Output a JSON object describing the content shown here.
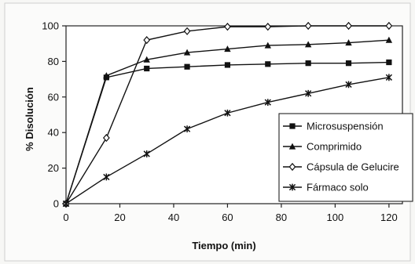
{
  "chart_data": {
    "type": "line",
    "xlabel": "Tiempo (min)",
    "ylabel": "% Disolución",
    "xlim": [
      0,
      125
    ],
    "ylim": [
      0,
      100
    ],
    "xticks": [
      0,
      20,
      40,
      60,
      80,
      100,
      120
    ],
    "yticks": [
      0,
      20,
      40,
      60,
      80,
      100
    ],
    "grid": false,
    "legend_position": "right",
    "series": [
      {
        "name": "Microsuspensión",
        "marker": "square",
        "x": [
          0,
          15,
          30,
          45,
          60,
          75,
          90,
          105,
          120
        ],
        "y": [
          0,
          71,
          76,
          77,
          78,
          78.5,
          79,
          79,
          79.5
        ]
      },
      {
        "name": "Comprimido",
        "marker": "triangle",
        "x": [
          0,
          15,
          30,
          45,
          60,
          75,
          90,
          105,
          120
        ],
        "y": [
          0,
          72,
          81,
          85,
          87,
          89,
          89.5,
          90.5,
          92
        ]
      },
      {
        "name": "Cápsula de Gelucire",
        "marker": "diamond",
        "x": [
          0,
          15,
          30,
          45,
          60,
          75,
          90,
          105,
          120
        ],
        "y": [
          0,
          37,
          92,
          97,
          99.5,
          99.5,
          100,
          100,
          100
        ]
      },
      {
        "name": "Fármaco solo",
        "marker": "star",
        "x": [
          0,
          15,
          30,
          45,
          60,
          75,
          90,
          105,
          120
        ],
        "y": [
          0,
          15,
          28,
          42,
          51,
          57,
          62,
          67,
          71
        ]
      }
    ]
  }
}
